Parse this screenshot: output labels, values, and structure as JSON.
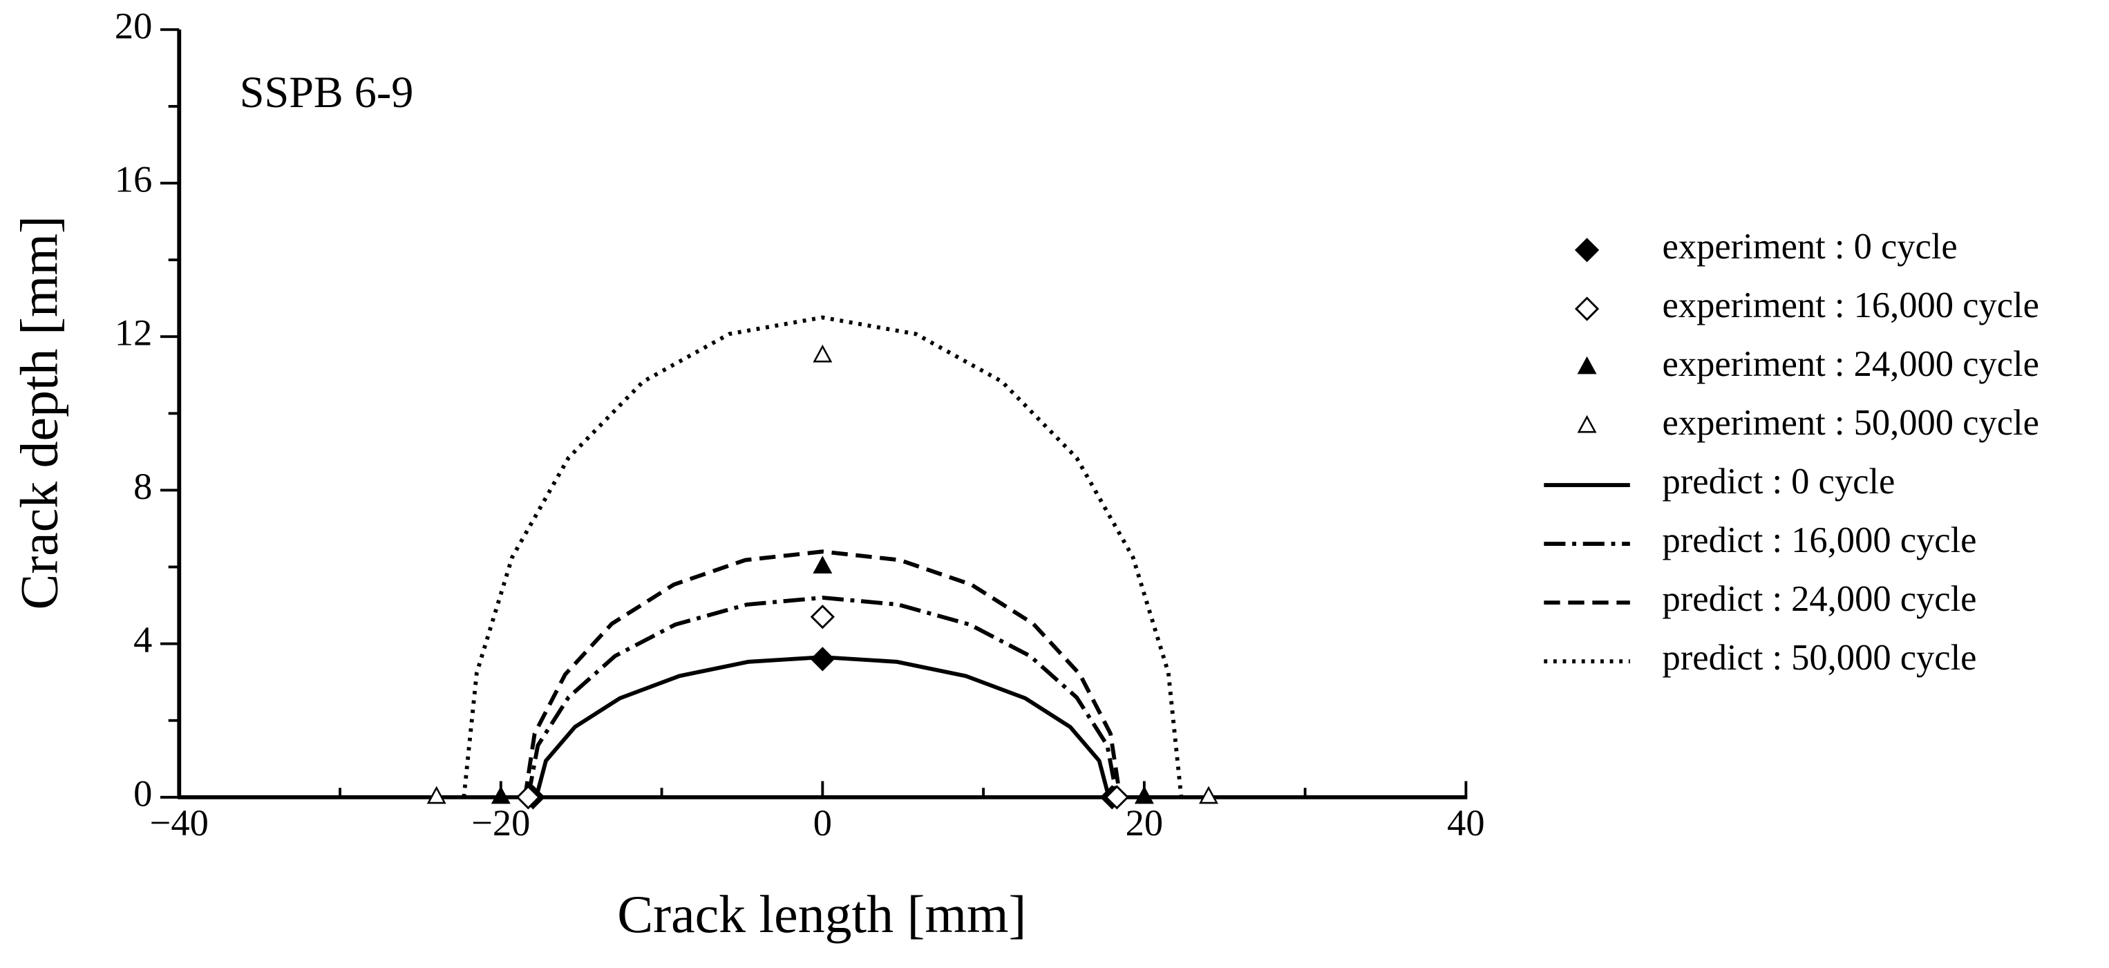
{
  "chart_data": {
    "type": "scatter",
    "annotation": "SSPB 6-9",
    "xlabel": "Crack length [mm]",
    "ylabel": "Crack depth [mm]",
    "xlim": [
      -40,
      40
    ],
    "ylim": [
      0,
      20
    ],
    "xticks": [
      {
        "value": -40,
        "label": "−40"
      },
      {
        "value": -20,
        "label": "−20"
      },
      0,
      20,
      40
    ],
    "yticks": [
      0,
      4,
      8,
      12,
      16,
      20
    ],
    "xminorticks": [
      -30,
      -10,
      10,
      30
    ],
    "yminorticks": [
      2,
      6,
      10,
      14,
      18
    ],
    "legend": "right",
    "series": [
      {
        "name": "experiment : 0 cycle",
        "type": "scatter",
        "marker": "diamond",
        "filled": true,
        "color": "#000000",
        "x": [
          -18,
          0,
          18
        ],
        "values": [
          0,
          3.6,
          0
        ]
      },
      {
        "name": "experiment : 16,000 cycle",
        "type": "scatter",
        "marker": "diamond",
        "filled": false,
        "color": "#000000",
        "x": [
          -18.3,
          0,
          18.3
        ],
        "values": [
          0,
          4.7,
          0
        ]
      },
      {
        "name": "experiment : 24,000 cycle",
        "type": "scatter",
        "marker": "triangle",
        "filled": true,
        "color": "#000000",
        "x": [
          -20,
          0,
          20
        ],
        "values": [
          0,
          6.0,
          0
        ]
      },
      {
        "name": "experiment : 50,000 cycle",
        "type": "scatter",
        "marker": "triangle",
        "filled": false,
        "color": "#000000",
        "x": [
          -24,
          0,
          24
        ],
        "values": [
          0,
          11.5,
          0
        ]
      },
      {
        "name": "predict : 0 cycle",
        "type": "line",
        "dash": "solid",
        "color": "#000000",
        "x": [
          -17.8,
          -17.2,
          -15.4,
          -12.6,
          -8.9,
          -4.6,
          0,
          4.6,
          8.9,
          12.6,
          15.4,
          17.2,
          17.8
        ],
        "values": [
          0,
          0.95,
          1.83,
          2.58,
          3.16,
          3.53,
          3.65,
          3.53,
          3.16,
          2.58,
          1.83,
          0.95,
          0
        ]
      },
      {
        "name": "predict : 16,000 cycle",
        "type": "line",
        "dash": "dashdot",
        "color": "#000000",
        "x": [
          -18.3,
          -17.7,
          -15.8,
          -12.9,
          -9.15,
          -4.7,
          0,
          4.7,
          9.15,
          12.9,
          15.8,
          17.7,
          18.3
        ],
        "values": [
          0,
          1.35,
          2.6,
          3.68,
          4.5,
          5.02,
          5.2,
          5.02,
          4.5,
          3.68,
          2.6,
          1.35,
          0
        ]
      },
      {
        "name": "predict : 24,000 cycle",
        "type": "line",
        "dash": "dashed",
        "color": "#000000",
        "x": [
          -18.5,
          -17.9,
          -16.0,
          -13.1,
          -9.25,
          -4.8,
          0,
          4.8,
          9.25,
          13.1,
          16.0,
          17.9,
          18.5
        ],
        "values": [
          0,
          1.66,
          3.2,
          4.52,
          5.54,
          6.18,
          6.4,
          6.18,
          5.54,
          4.52,
          3.2,
          1.66,
          0
        ]
      },
      {
        "name": "predict : 50,000 cycle",
        "type": "line",
        "dash": "dotted",
        "color": "#000000",
        "x": [
          -22.3,
          -21.5,
          -19.3,
          -15.8,
          -11.15,
          -5.8,
          0,
          5.8,
          11.15,
          15.8,
          19.3,
          21.5,
          22.3
        ],
        "values": [
          0,
          3.24,
          6.25,
          8.84,
          10.83,
          12.07,
          12.5,
          12.07,
          10.83,
          8.84,
          6.25,
          3.24,
          0
        ]
      }
    ]
  }
}
